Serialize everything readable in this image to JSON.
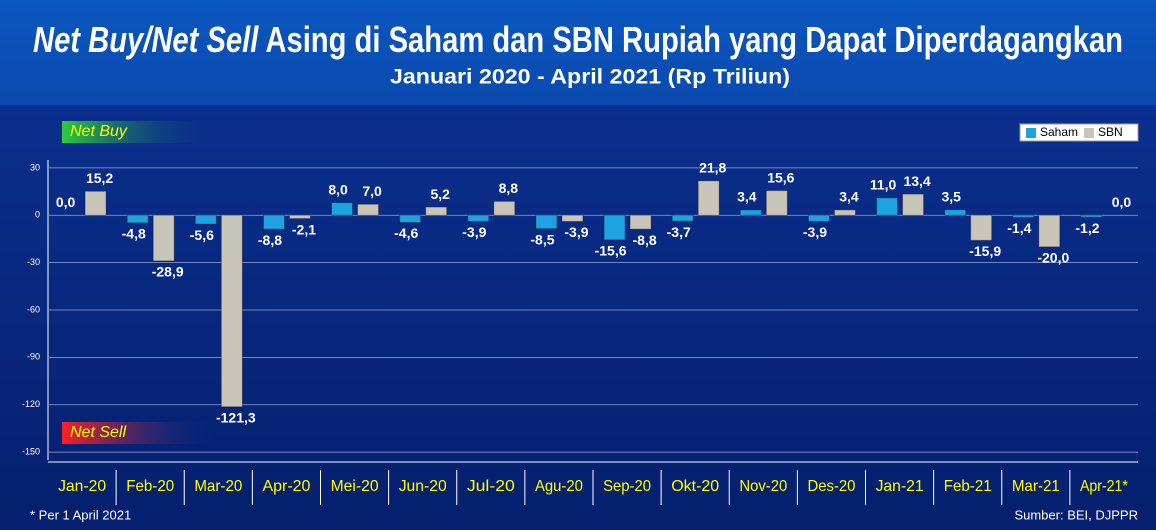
{
  "chart_data": {
    "type": "bar",
    "title": "Net Buy/Net Sell",
    "title_rest": "Asing di Saham dan SBN Rupiah yang Dapat Diperdagangkan",
    "subtitle": "Januari 2020 - April 2021 (Rp Triliun)",
    "annotations": [
      "Net Buy",
      "Net Sell"
    ],
    "footnote": "* Per 1 April 2021",
    "source": "Sumber: BEI, DJPPR",
    "categories": [
      "Jan-20",
      "Feb-20",
      "Mar-20",
      "Apr-20",
      "Mei-20",
      "Jun-20",
      "Jul-20",
      "Agu-20",
      "Sep-20",
      "Okt-20",
      "Nov-20",
      "Des-20",
      "Jan-21",
      "Feb-21",
      "Mar-21",
      "Apr-21*"
    ],
    "series": [
      {
        "name": "Saham",
        "color": "#1fa3e0",
        "values": [
          0.0,
          -4.8,
          -5.6,
          -8.8,
          8.0,
          -4.6,
          -3.9,
          -8.5,
          -15.6,
          -3.7,
          3.4,
          -3.9,
          11.0,
          3.5,
          -1.4,
          -1.2
        ],
        "value_labels": [
          "0,0",
          "-4,8",
          "-5,6",
          "-8,8",
          "8,0",
          "-4,6",
          "-3,9",
          "-8,5",
          "-15,6",
          "-3,7",
          "3,4",
          "-3,9",
          "11,0",
          "3,5",
          "-1,4",
          "-1,2"
        ]
      },
      {
        "name": "SBN",
        "color": "#c9c5b9",
        "values": [
          15.2,
          -28.9,
          -121.3,
          -2.1,
          7.0,
          5.2,
          8.8,
          -3.9,
          -8.8,
          21.8,
          15.6,
          3.4,
          13.4,
          -15.9,
          -20.0,
          0.0
        ],
        "value_labels": [
          "15,2",
          "-28,9",
          "-121,3",
          "-2,1",
          "7,0",
          "5,2",
          "8,8",
          "-3,9",
          "-8,8",
          "21,8",
          "15,6",
          "3,4",
          "13,4",
          "-15,9",
          "-20,0",
          "0,0"
        ]
      }
    ],
    "ylim": [
      -155,
      35
    ],
    "yticks": [
      30,
      0,
      -30,
      -60,
      -90,
      -120,
      -150
    ],
    "grid": true,
    "legend": "top-right"
  }
}
